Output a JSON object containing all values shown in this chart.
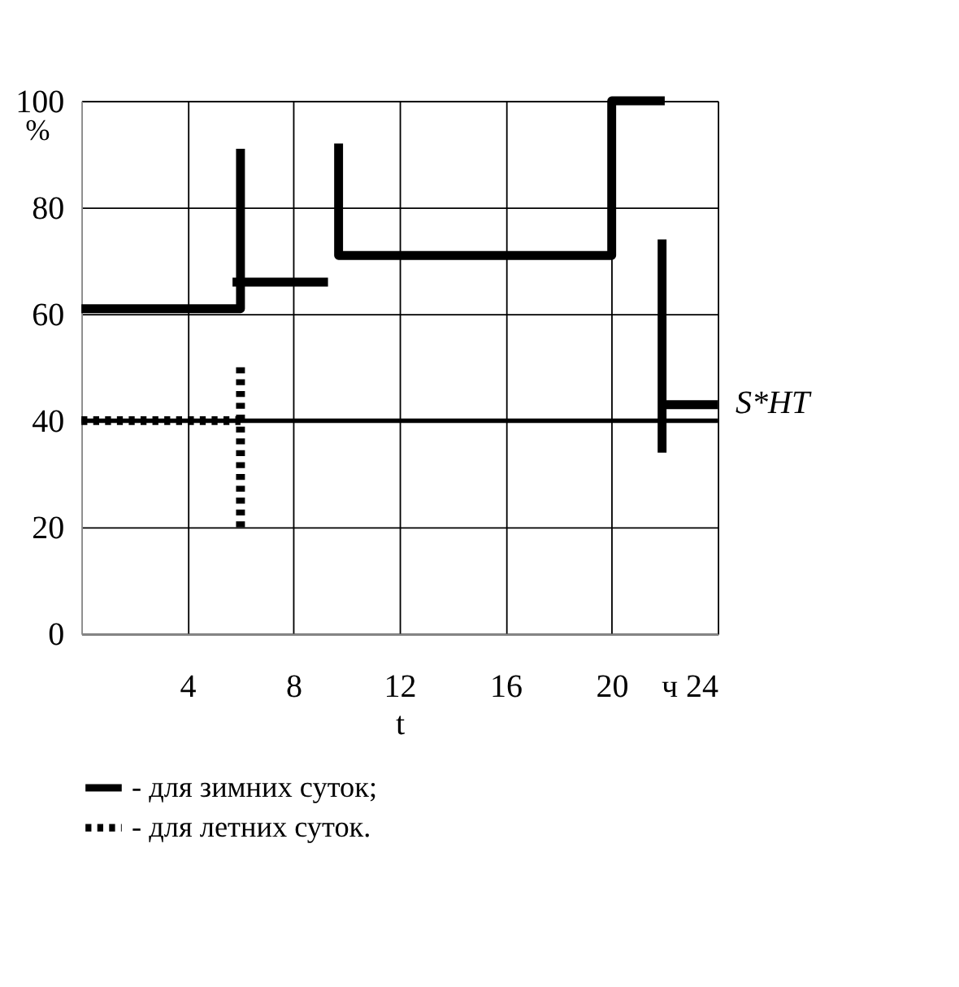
{
  "chart_data": {
    "type": "line",
    "xlabel": "t",
    "ylabel": "%",
    "xlim": [
      0,
      24
    ],
    "xticks": [
      4,
      8,
      12,
      16,
      20,
      {
        "value": 24,
        "label": "ч 24"
      }
    ],
    "ylim": [
      0,
      100
    ],
    "yticks": [
      0,
      20,
      40,
      60,
      80,
      100
    ],
    "grid": true,
    "legend": "bottom",
    "marker": "none",
    "ref_lines": [
      {
        "axis": "y",
        "value": 40,
        "label": "S*НТ",
        "color": "#000000"
      }
    ],
    "series": [
      {
        "name": "- для зимних суток;",
        "color": "#000000",
        "line_style": "solid",
        "x": [
          0,
          6,
          6,
          null,
          5.7,
          9.3,
          null,
          9.7,
          9.7,
          20,
          20,
          22,
          null,
          21.9,
          21.9,
          null,
          22,
          24
        ],
        "values": [
          61,
          61,
          91,
          null,
          66,
          66,
          null,
          92,
          71,
          71,
          100,
          100,
          null,
          74,
          34,
          null,
          43,
          43
        ]
      },
      {
        "name": "- для летних суток.",
        "color": "#000000",
        "line_style": "dotted",
        "x": [
          0,
          6,
          null,
          6,
          6
        ],
        "values": [
          40,
          40,
          null,
          50,
          19
        ]
      }
    ]
  }
}
